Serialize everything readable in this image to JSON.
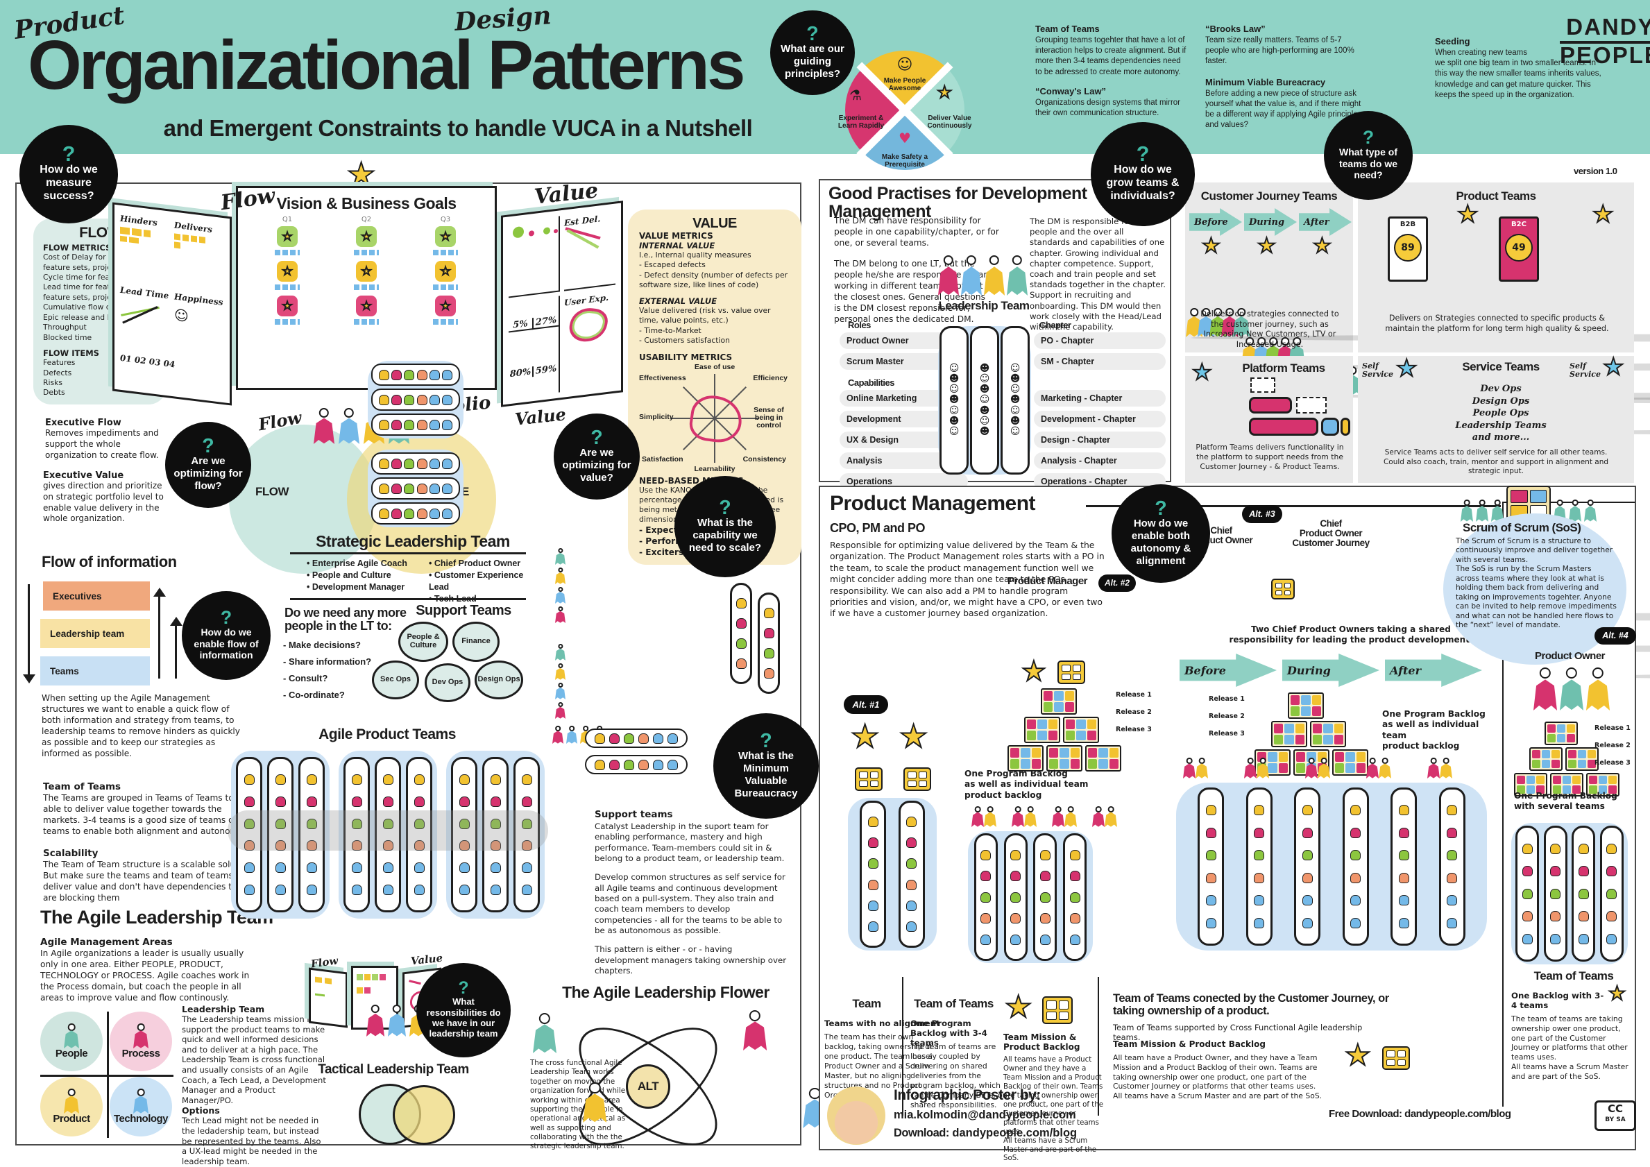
{
  "colors": {
    "band": "#90d3c6",
    "accent_teal": "#3fb9a4",
    "yellow": "#f2c230",
    "pink": "#d6336e",
    "blue": "#74b9e8",
    "green": "#8cc63f",
    "light_blue": "#cfe3f5",
    "light_teal": "#dcece8",
    "light_yellow": "#f8ecca"
  },
  "header": {
    "product": "Product",
    "design": "Design",
    "title": "Organizational Patterns",
    "subtitle": "and Emergent Constraints to handle VUCA in a Nutshell",
    "logo1": "DANDY",
    "logo2": "PEOPLE",
    "version": "version 1.0"
  },
  "wheel": {
    "q": "What are our guiding principles?",
    "top": "Make People Awesome",
    "left": "Experiment & Learn Rapidly",
    "right": "Deliver Value Continuously",
    "bottom": "Make Safety a Prerequisite"
  },
  "notes": {
    "tot_title": "Team of Teams",
    "tot_body": "Grouping teams togehter that have a lot of interaction helps to create alignment. But if more then 3-4 teams dependencies need to be adressed to create more autonomy.",
    "conway_title": "“Conway's Law”",
    "conway_body": "Organizations design systems that mirror their own communication structure.",
    "brooks_title": "“Brooks Law”",
    "brooks_body": "Team size really matters. Teams of 5-7 people who are high-performing are 100% faster.",
    "mvb_title": "Minimum Viable Bureacracy",
    "mvb_body": "Before adding a new piece of structure ask yourself what the value is, and if there might be a different way if applying Agile principles and values?",
    "seed_title": "Seeding",
    "seed_body": "When creating new teams\nwe split one big team in two smaller teams. In this way the new smaller teams inherits values, knowledge and can get mature quicker. This keeps the speed up in the organization."
  },
  "q": {
    "mark": "?",
    "measure": "How do we measure success?",
    "grow": "How do we grow teams & individuals?",
    "team_type": "What type of teams do we need?",
    "opt_flow": "Are we optimizing for flow?",
    "opt_value": "Are we optimizing for value?",
    "flow_info": "How do we enable flow of information",
    "capability": "What is the capability we need to scale?",
    "min_b": "What is the Minimum Valuable Bureaucracy",
    "resp": "What resonsibilities do we have in our leadership team",
    "autonomy": "How do we enable both autonomy & alignment"
  },
  "flow_box": {
    "title": "FLOW",
    "metrics_title": "FLOW METRICS",
    "metrics": [
      "Cost of Delay for features,",
      "feature sets, projects",
      "Cycle time for features",
      "Lead time for features,",
      "feature sets, projects",
      "Cumulative flow diagram",
      "Epic release and burndown",
      "Throughput",
      "Blocked time"
    ],
    "items_title": "FLOW ITEMS",
    "items": [
      "Features",
      "Defects",
      "Risks",
      "Debts"
    ]
  },
  "exec": {
    "flow_title": "Executive Flow",
    "flow_body": "Removes impediments and support the whole organization to create flow.",
    "value_title": "Executive Value",
    "value_body": "gives direction and prioritize on strategic portfolio level to enable value delivery in the whole organization."
  },
  "vision": {
    "title": "Vision & Business Goals",
    "flow_hw": "Flow",
    "value_hw": "Value",
    "portfolio_hw": "Portfolio",
    "flow2_hw": "Flow",
    "value2_hw": "Value",
    "q_cols": [
      "Q1",
      "Q2",
      "Q3"
    ],
    "hinders": "Hinders",
    "delivers": "Delivers",
    "lead_time": "Lead Time",
    "happiness": "Happiness",
    "axis": "01 02 03 04",
    "est_del": "Est Del.",
    "user_exp": "User Exp.",
    "pct": [
      "5%",
      "27%",
      "80%",
      "59%"
    ]
  },
  "venn": {
    "flow": "FLOW",
    "value": "VALUE"
  },
  "slt": {
    "title": "Strategic Leadership Team",
    "col1": [
      "Enterprise Agile Coach",
      "People and Culture",
      "Development Manager"
    ],
    "col2": [
      "Chief Product Owner",
      "Customer Experience Lead",
      "Tech Lead"
    ]
  },
  "lt_need": {
    "title": "Do we need any more people in the LT to:",
    "items": [
      "- Make decisions?",
      "- Share information?",
      "- Consult?",
      "- Co-ordinate?"
    ]
  },
  "sup": {
    "title": "Support Teams",
    "b1": "People & Culture",
    "b2": "Finance",
    "b3": "Sec Ops",
    "b4": "Dev Ops",
    "b5": "Design Ops"
  },
  "finfo": {
    "title": "Flow of information",
    "bar1": "Executives",
    "bar2": "Leadership team",
    "bar3": "Teams",
    "body": "When setting up the Agile Management structures we want to enable a quick flow of both information and strategy from teams, to leadership teams to remove hinders as quickly as possible and to keep our strategies as informed as possible."
  },
  "lt": {
    "tot_title": "Team of Teams",
    "tot_body": "The Teams are grouped in Teams of Teams to be able to deliver value together towards the markets. 3-4 teams is a good size of teams of teams to enable both alignment and autonomy.",
    "scal_title": "Scalability",
    "scal_body": "The Team of Team structure is a scalable solution. But make sure the teams and team of teams can deliver value and don't have dependencies that are blocking them",
    "alt_title": "The Agile Leadership Team",
    "ama_title": "Agile Management Areas",
    "ama_body": "In Agile organizations a leader is usually  usually only in one area. Either PEOPLE, PRODUCT, TECHNOLOGY or PROCESS. Agile coaches work in the Process domain, but  coach the people in all areas to improve value and flow continously.",
    "lt_title": "Leadership Team",
    "lt_body": "The Leadership teams mission is to support the product teams to make quick and well informed desicions and to deliver at a high pace. The Leadership Team is cross functional and usually consists of an Agile Coach, a Tech Lead, a Development Manager and a Product Manager/PO.",
    "opt_title": "Options",
    "opt_body": "Tech Lead might not be needed in the ledadership team, but instead be represented by the teams. Also a UX-lead might be needed in the leadership team."
  },
  "quad": {
    "p1": "People",
    "p2": "Process",
    "p3": "Product",
    "p4": "Technology"
  },
  "apt": {
    "title": "Agile Product Teams"
  },
  "stx": {
    "title": "Support teams",
    "p1": "Catalyst Leadership in the suport team for enabling performance, mastery and high performance. Team-members could sit in & belong to a product team, or leadership team.",
    "p2": "Develop common structures as self service for all Agile teams and continuous development based on a pull-system. They also train and coach team members to develop competencies - all for the teams to be able to be as autonomous as possible.",
    "p3": "This pattern is either - or -  having development managers taking ownership over chapters."
  },
  "tac": {
    "title": "Tactical Leadership Team",
    "body": "The cross functional Agile Leadership Team works together on moving the organization forward while working within each area supporting their people in operational and tactical as well as supporting and collaborating with the the strategic leadership  team."
  },
  "flower": {
    "title": "The Agile Leadership Flower",
    "alt": "ALT"
  },
  "vb": {
    "title": "VALUE",
    "vm_title": "VALUE METRICS",
    "iv_title": "INTERNAL VALUE",
    "iv_lines": [
      "I.e., Internal quality measures",
      "- Escaped defects",
      "- Defect density (number of defects per software size, like lines of code)"
    ],
    "ev_title": "EXTERNAL VALUE",
    "ev_lines": [
      "Value delivered (risk vs. value over time, value points, etc.)",
      "- Time-to-Market",
      "- Customers satisfaction"
    ],
    "um_title": "USABILITY METRICS",
    "radar": [
      "Ease of use",
      "Efficiency",
      "Sense of being in control",
      "Consistency",
      "Learnability",
      "Satisfaction",
      "Simplicity",
      "Effectiveness"
    ],
    "nb_title": "NEED-BASED METRICS",
    "nb_body": "Use the KANO model to gauge the percentage that a given user's need is being met by the product along three dimensions:",
    "nb_items": [
      "- Expected quality",
      "- Performers",
      "- Exciters"
    ]
  },
  "gp": {
    "title": "Good Practises for Development Management",
    "b1": "The DM can have responsibility for people in one capability/chapter, or for one, or several teams.",
    "b2": "The DM belong to one LT, but the people he/she are responsible for are working in different teams, not just the closest ones. General questions is the DM closest reponsible for, personal ones the dedicated DM.",
    "b3": "The DM is responsible for the people and the over all standards and capabilities of one chapter. Growing individual and chapter competence. Support, coach and train people and set standads together in the chapter. Support in recruiting and onboarding. This DM would then work closely with the Head/Lead within the capability.",
    "lt_caption": "Leadership Team",
    "roles_title": "Roles",
    "roles": [
      "Product Owner",
      "Scrum Master"
    ],
    "cap_title": "Capabilities",
    "caps": [
      "Online Marketing",
      "Development",
      "UX & Design",
      "Analysis",
      "Operations"
    ],
    "chapter_title": "Chapter",
    "chapters_a": [
      "PO - Chapter",
      "SM - Chapter"
    ],
    "chapters_b": [
      "Marketing - Chapter",
      "Development - Chapter",
      "Design - Chapter",
      "Analysis - Chapter",
      "Operations - Chapter"
    ]
  },
  "pan": {
    "cjt_title": "Customer Journey Teams",
    "cjt_arrows": [
      "Before",
      "During",
      "After"
    ],
    "cjt_caption": "Delivers on strategies connected to the customer journey, such as Increasing New Customers, LTV or Increased Usage.",
    "pt_title": "Product Teams",
    "pt_b2b": "B2B",
    "pt_b2b_price": "89",
    "pt_b2c": "B2C",
    "pt_b2c_price": "49",
    "pt_caption": "Delivers on Strategies connected to specific products & maintain the platform for long term high quality & speed.",
    "plt_title": "Platform Teams",
    "plt_caption": "Platform Teams delivers functionality in the platform to support needs from the Customer Journey - & Product Teams.",
    "st_title": "Service Teams",
    "st_self1": "Self\nService",
    "st_self2": "Self\nService",
    "st_list": [
      "Dev Ops",
      "Design Ops",
      "People Ops",
      "Leadership Teams",
      "and more..."
    ],
    "st_caption": "Service Teams acts to deliver self service for all other teams. Could also coach, train, mentor and support in alignment and strategic input."
  },
  "pm": {
    "title": "Product Management",
    "cpo_title": "CPO, PM and PO",
    "cpo_body": "Responsible for optimizing value delivered by the Team & the organization. The Product Management roles starts with a PO in the team, to scale the product management function well we might concider adding more than one team to the POs responsibility. We can also add a PM to handle program priorities and vision, and/or, we might have a CPO, or even two if we have a customer journey based organization.",
    "alt1": "Alt. #1",
    "alt2": "Alt. #2",
    "alt3": "Alt. #3",
    "alt4": "Alt. #4",
    "pm_label": "Product Manager",
    "cpo1": "Chief\nProduct Owner",
    "cpo2": "Chief\nProduct Owner\nCustomer Journey",
    "po_label": "Product Owner",
    "two_cpo": "Two Chief Product Owners taking a shared responsibility for leading the product development.",
    "arrows": [
      "Before",
      "During",
      "After"
    ],
    "releases": [
      "Release 1",
      "Release 2",
      "Release 3"
    ],
    "backlog1": "One Program Backlog\nas well as individual team\nproduct backlog",
    "backlog2": "One Program Backlog\nas well as individual team\nproduct backlog",
    "backlog3": "One Program Backlog\nwith several teams",
    "team_title": "Team",
    "team_sub": "Teams with no alignment",
    "team_body": "The team has their own backlog, taking ownership of one product. The team has a Product Owner and a Scrum Master, but no aligning structures and no Product Organization.",
    "tot_title": "Team of Teams",
    "tot_sub": "One Program Backlog with 3-4 teams",
    "tot_body": "The team of teams are loosely coupled by delivering on shared deliveries from the program backlog, which can be Company BETs, or shared responsibilities.",
    "mission_title": "Team Mission & Product Backlog",
    "mission_body": "All teams have a Product Owner and they have a Team Mission and a Product Backlog of their own. Teams are taking ownership ower one product, one part of the Customer Journey or platforms that other teams uses.\nAll teams have a Scrum Master and are part of the SoS.",
    "wide_title": "Team of Teams conected by the Customer Journey, or taking ownership of a product.",
    "wide_sub": "Team of Teams supported by Cross Functional Agile leadership teams.",
    "wide_mission": "Team Mission & Product Backlog",
    "wide_body": "All team have a Product Owner, and they have a Team Mission and a Product Backlog of their own. Teams are taking ownership ower one product, one part of the Customer Journey or platforms that other teams uses.\nAll teams have a Scrum Master and are part of the SoS.",
    "right_title": "Team of Teams",
    "right_sub": "One Backlog with 3-4 teams",
    "right_body": "The team of teams are taking ownership ower one product, one part of the Customer Journey or platforms that other teams uses.\nAll teams have a Scrum Master and are part of the SoS."
  },
  "sos": {
    "title": "Scrum of Scrum (SoS)",
    "body": "The Scrum of Scrum is a structure to continuously improve and deliver together with several teams.\nThe SoS is run by the Scrum Masters across teams where they look at what is holding them back from delivering and taking on improvements togehter. Anyone can be invited to help remove impediments and what can not be handled here flows to the “next” level of mandate."
  },
  "credit": {
    "title": "Infographic Poster by:",
    "email": "mia.kolmodin@dandypeople.com",
    "dl_label": "Download:",
    "dl_url": "dandypeople.com/blog",
    "free": "Free Download: dandypeople.com/blog",
    "cc1": "CC",
    "cc2": "BY SA"
  }
}
